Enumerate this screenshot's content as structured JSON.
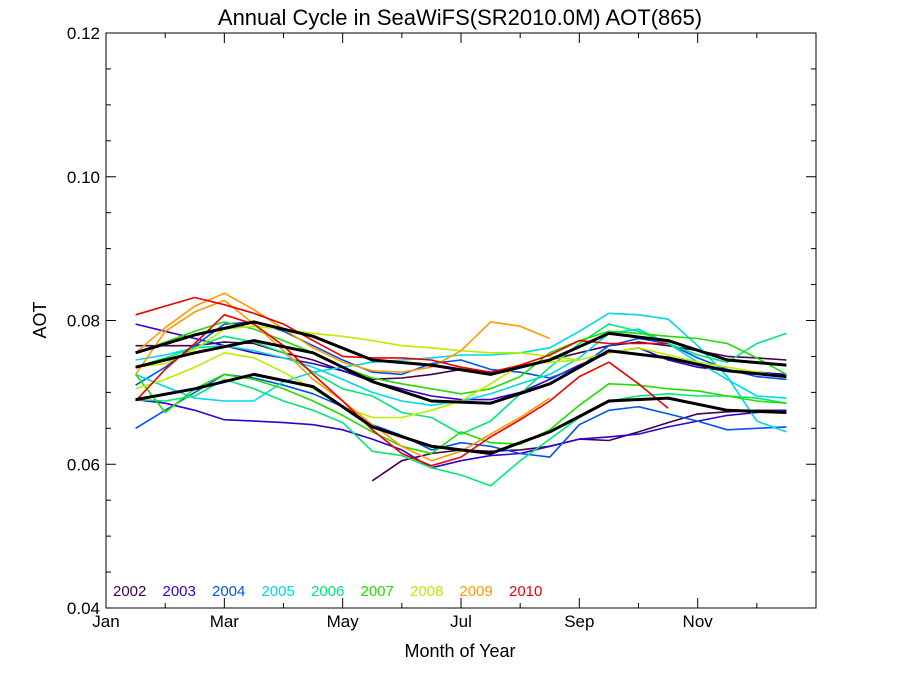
{
  "chart_data": {
    "type": "line",
    "title": "Annual Cycle in SeaWiFS(SR2010.0M) AOT(865)",
    "xlabel": "Month of Year",
    "ylabel": "AOT",
    "xlim": [
      1,
      13
    ],
    "ylim": [
      0.04,
      0.12
    ],
    "x_ticks": [
      {
        "value": 1,
        "label": "Jan"
      },
      {
        "value": 3,
        "label": "Mar"
      },
      {
        "value": 5,
        "label": "May"
      },
      {
        "value": 7,
        "label": "Jul"
      },
      {
        "value": 9,
        "label": "Sep"
      },
      {
        "value": 11,
        "label": "Nov"
      }
    ],
    "y_ticks": [
      {
        "value": 0.04,
        "label": "0.04"
      },
      {
        "value": 0.06,
        "label": "0.06"
      },
      {
        "value": 0.08,
        "label": "0.08"
      },
      {
        "value": 0.1,
        "label": "0.10"
      },
      {
        "value": 0.12,
        "label": "0.12"
      }
    ],
    "legend_position": "bottom-left",
    "legend": [
      {
        "label": "2002",
        "color": "#44004f"
      },
      {
        "label": "2003",
        "color": "#3300cc"
      },
      {
        "label": "2004",
        "color": "#0055ee"
      },
      {
        "label": "2005",
        "color": "#00d8e8"
      },
      {
        "label": "2006",
        "color": "#00e878"
      },
      {
        "label": "2007",
        "color": "#22dd00"
      },
      {
        "label": "2008",
        "color": "#b8ee00"
      },
      {
        "label": "2009",
        "color": "#ff9900"
      },
      {
        "label": "2010",
        "color": "#ee0000"
      }
    ],
    "series": [
      {
        "color": "#44004f",
        "x": [
          5.5,
          6,
          6.5,
          7,
          7.5,
          8,
          8.5,
          9,
          9.5,
          10,
          10.5,
          11,
          11.5,
          12,
          12.5
        ],
        "y": [
          0.0577,
          0.0605,
          0.0615,
          0.062,
          0.0618,
          0.062,
          0.0625,
          0.0635,
          0.0633,
          0.0645,
          0.0658,
          0.067,
          0.0673,
          0.0675,
          0.0675
        ]
      },
      {
        "color": "#44004f",
        "x": [
          1.5,
          2,
          2.5,
          3,
          3.5,
          4,
          4.5,
          5,
          5.5,
          6,
          6.5,
          7,
          7.5,
          8,
          8.5,
          9,
          9.5,
          10,
          10.5,
          11,
          11.5,
          12,
          12.5
        ],
        "y": [
          0.0765,
          0.0765,
          0.0765,
          0.077,
          0.0768,
          0.0755,
          0.0745,
          0.073,
          0.0718,
          0.072,
          0.0725,
          0.0732,
          0.0728,
          0.0735,
          0.0745,
          0.0755,
          0.0765,
          0.077,
          0.0765,
          0.0758,
          0.075,
          0.0748,
          0.0745
        ]
      },
      {
        "color": "#3300cc",
        "x": [
          1.5,
          2,
          2.5,
          3,
          3.5,
          4,
          4.5,
          5,
          5.5,
          6,
          6.5,
          7,
          7.5,
          8,
          8.5,
          9,
          9.5,
          10,
          10.5,
          11,
          11.5,
          12,
          12.5
        ],
        "y": [
          0.069,
          0.0685,
          0.0675,
          0.0662,
          0.066,
          0.0658,
          0.0655,
          0.0648,
          0.0635,
          0.062,
          0.0595,
          0.0605,
          0.0612,
          0.0615,
          0.0625,
          0.0635,
          0.0638,
          0.0642,
          0.0652,
          0.066,
          0.0668,
          0.0672,
          0.0675
        ]
      },
      {
        "color": "#3300cc",
        "x": [
          1.5,
          2,
          2.5,
          3,
          3.5,
          4,
          4.5,
          5,
          5.5,
          6,
          6.5,
          7,
          7.5,
          8,
          8.5,
          9,
          9.5,
          10,
          10.5,
          11,
          11.5,
          12,
          12.5
        ],
        "y": [
          0.0795,
          0.0785,
          0.0775,
          0.0765,
          0.0755,
          0.0748,
          0.074,
          0.073,
          0.0715,
          0.0705,
          0.0695,
          0.069,
          0.069,
          0.07,
          0.0718,
          0.0738,
          0.0755,
          0.0762,
          0.0745,
          0.0735,
          0.073,
          0.0728,
          0.0725
        ]
      },
      {
        "color": "#0055ee",
        "x": [
          1.5,
          2,
          2.5,
          3,
          3.5,
          4,
          4.5,
          5,
          5.5,
          6,
          6.5,
          7,
          7.5,
          8,
          8.5,
          9,
          9.5,
          10,
          10.5,
          11,
          11.5,
          12,
          12.5
        ],
        "y": [
          0.065,
          0.0675,
          0.07,
          0.0725,
          0.072,
          0.071,
          0.0698,
          0.068,
          0.0655,
          0.064,
          0.062,
          0.063,
          0.0625,
          0.0615,
          0.061,
          0.0655,
          0.0675,
          0.068,
          0.067,
          0.066,
          0.0648,
          0.065,
          0.0652
        ]
      },
      {
        "color": "#0055ee",
        "x": [
          1.5,
          2,
          2.5,
          3,
          3.5,
          4,
          4.5,
          5,
          5.5,
          6,
          6.5,
          7,
          7.5,
          8,
          8.5,
          9,
          9.5,
          10,
          10.5,
          11,
          11.5,
          12,
          12.5
        ],
        "y": [
          0.071,
          0.0735,
          0.0765,
          0.0795,
          0.0798,
          0.0785,
          0.0765,
          0.0745,
          0.0728,
          0.0725,
          0.074,
          0.0745,
          0.0732,
          0.0728,
          0.072,
          0.0735,
          0.0765,
          0.0775,
          0.0768,
          0.0748,
          0.0732,
          0.0722,
          0.0718
        ]
      },
      {
        "color": "#00d8e8",
        "x": [
          1.5,
          2,
          2.5,
          3,
          3.5,
          4,
          4.5,
          5,
          5.5,
          6,
          6.5,
          7,
          7.5,
          8,
          8.5,
          9,
          9.5,
          10,
          10.5,
          11,
          11.5,
          12,
          12.5
        ],
        "y": [
          0.0725,
          0.0708,
          0.0692,
          0.0688,
          0.0688,
          0.0715,
          0.0728,
          0.0735,
          0.0742,
          0.0745,
          0.0748,
          0.0752,
          0.0752,
          0.0755,
          0.0762,
          0.0785,
          0.081,
          0.0808,
          0.0802,
          0.0765,
          0.0722,
          0.066,
          0.0645
        ]
      },
      {
        "color": "#00d8e8",
        "x": [
          1.5,
          2,
          2.5,
          3,
          3.5,
          4,
          4.5,
          5,
          5.5,
          6,
          6.5,
          7,
          7.5,
          8,
          8.5,
          9,
          9.5,
          10,
          10.5,
          11,
          11.5,
          12,
          12.5
        ],
        "y": [
          0.0745,
          0.0752,
          0.0762,
          0.0765,
          0.0758,
          0.0748,
          0.0735,
          0.0718,
          0.07,
          0.0688,
          0.0682,
          0.0688,
          0.0698,
          0.0712,
          0.0725,
          0.0748,
          0.0782,
          0.0788,
          0.0768,
          0.0742,
          0.0718,
          0.0695,
          0.0692
        ]
      },
      {
        "color": "#00e878",
        "x": [
          1.5,
          2,
          2.5,
          3,
          3.5,
          4,
          4.5,
          5,
          5.5,
          6,
          6.5,
          7,
          7.5,
          8,
          8.5,
          9,
          9.5,
          10,
          10.5,
          11,
          11.5,
          12,
          12.5
        ],
        "y": [
          0.069,
          0.0688,
          0.0695,
          0.0718,
          0.0705,
          0.0688,
          0.0675,
          0.0658,
          0.0618,
          0.0612,
          0.0595,
          0.0585,
          0.057,
          0.0605,
          0.0635,
          0.0665,
          0.0688,
          0.0695,
          0.0698,
          0.0695,
          0.0695,
          0.0692,
          0.0685
        ]
      },
      {
        "color": "#00e878",
        "x": [
          1.5,
          2,
          2.5,
          3,
          3.5,
          4,
          4.5,
          5,
          5.5,
          6,
          6.5,
          7,
          7.5,
          8,
          8.5,
          9,
          9.5,
          10,
          10.5,
          11,
          11.5,
          12,
          12.5
        ],
        "y": [
          0.0735,
          0.0748,
          0.0762,
          0.0778,
          0.077,
          0.0755,
          0.0728,
          0.0705,
          0.0695,
          0.0672,
          0.0665,
          0.0642,
          0.066,
          0.0698,
          0.0735,
          0.0768,
          0.0795,
          0.0785,
          0.0768,
          0.0752,
          0.0742,
          0.0768,
          0.0782
        ]
      },
      {
        "color": "#22dd00",
        "x": [
          1.5,
          2,
          2.5,
          3,
          3.5,
          4,
          4.5,
          5,
          5.5,
          6,
          6.5,
          7,
          7.5,
          8,
          8.5,
          9,
          9.5,
          10,
          10.5,
          11,
          11.5,
          12,
          12.5
        ],
        "y": [
          0.0725,
          0.0672,
          0.0705,
          0.0725,
          0.0718,
          0.0705,
          0.0688,
          0.0668,
          0.0645,
          0.0625,
          0.0615,
          0.0645,
          0.063,
          0.0628,
          0.0648,
          0.0682,
          0.0712,
          0.071,
          0.0705,
          0.0702,
          0.0695,
          0.0688,
          0.0685
        ]
      },
      {
        "color": "#22dd00",
        "x": [
          1.5,
          2,
          2.5,
          3,
          3.5,
          4,
          4.5,
          5,
          5.5,
          6,
          6.5,
          7,
          7.5,
          8,
          8.5,
          9,
          9.5,
          10,
          10.5,
          11,
          11.5,
          12,
          12.5
        ],
        "y": [
          0.0755,
          0.077,
          0.0785,
          0.0798,
          0.0788,
          0.0772,
          0.0755,
          0.0735,
          0.072,
          0.0712,
          0.0705,
          0.0698,
          0.0705,
          0.0722,
          0.0755,
          0.0772,
          0.0785,
          0.0782,
          0.0778,
          0.0775,
          0.0768,
          0.0748,
          0.0725
        ]
      },
      {
        "color": "#b8ee00",
        "x": [
          1.5,
          2,
          2.5,
          3,
          3.5,
          4,
          4.5,
          5,
          5.5,
          6,
          6.5,
          7,
          7.5,
          8,
          8.5,
          9
        ],
        "y": [
          0.0735,
          0.074,
          0.076,
          0.0788,
          0.0792,
          0.0788,
          0.0782,
          0.0778,
          0.0772,
          0.0765,
          0.0762,
          0.0758,
          0.0755,
          0.0755,
          0.075,
          0.0745
        ]
      },
      {
        "color": "#b8ee00",
        "x": [
          1.5,
          2,
          2.5,
          3,
          3.5,
          4,
          4.5,
          5,
          5.5,
          6,
          6.5,
          7,
          7.5,
          8,
          8.5,
          9,
          9.5,
          10,
          10.5,
          11,
          11.5,
          12,
          12.5
        ],
        "y": [
          0.0705,
          0.0718,
          0.0735,
          0.0755,
          0.0748,
          0.0728,
          0.0705,
          0.068,
          0.0665,
          0.0665,
          0.0675,
          0.0688,
          0.0712,
          0.0738,
          0.0742,
          0.0745,
          0.0755,
          0.0762,
          0.0752,
          0.0742,
          0.0735,
          0.0728,
          0.0722
        ]
      },
      {
        "color": "#ff9900",
        "x": [
          1.5,
          2,
          2.5,
          3,
          3.5,
          4,
          4.5,
          5,
          5.5,
          6,
          6.5,
          7,
          7.5,
          8,
          8.5
        ],
        "y": [
          0.0755,
          0.079,
          0.082,
          0.0838,
          0.0815,
          0.0788,
          0.0762,
          0.0742,
          0.073,
          0.0728,
          0.0735,
          0.0758,
          0.0798,
          0.0792,
          0.0775
        ]
      },
      {
        "color": "#ff9900",
        "x": [
          1.5,
          2,
          2.5,
          3,
          3.5,
          4,
          4.5,
          5,
          5.5,
          6,
          6.5,
          7,
          7.5,
          8,
          8.5
        ],
        "y": [
          0.0725,
          0.0785,
          0.0812,
          0.0828,
          0.0795,
          0.0758,
          0.0718,
          0.0688,
          0.0655,
          0.0625,
          0.0605,
          0.0618,
          0.0642,
          0.0665,
          0.0692
        ]
      },
      {
        "color": "#ee0000",
        "x": [
          1.5,
          2,
          2.5,
          3,
          3.5,
          4,
          4.5,
          5,
          5.5,
          6,
          6.5,
          7,
          7.5,
          8,
          8.5,
          9,
          9.5,
          10,
          10.5
        ],
        "y": [
          0.0808,
          0.082,
          0.0832,
          0.0822,
          0.081,
          0.0795,
          0.0772,
          0.075,
          0.0748,
          0.0748,
          0.0745,
          0.0735,
          0.0728,
          0.0738,
          0.0752,
          0.0772,
          0.0768,
          0.0768,
          0.0768
        ]
      },
      {
        "color": "#ee0000",
        "x": [
          1.5,
          2,
          2.5,
          3,
          3.5,
          4,
          4.5,
          5,
          5.5,
          6,
          6.5,
          7,
          7.5,
          8,
          8.5,
          9,
          9.5,
          10,
          10.5
        ],
        "y": [
          0.0688,
          0.0732,
          0.0768,
          0.0808,
          0.0795,
          0.0765,
          0.0725,
          0.0688,
          0.0648,
          0.0615,
          0.0598,
          0.061,
          0.0638,
          0.0662,
          0.0688,
          0.0722,
          0.0742,
          0.0712,
          0.0678
        ]
      },
      {
        "color": "#000000",
        "x": [
          1.5,
          2.5,
          3.5,
          4.5,
          5.5,
          6.5,
          7.5,
          8.5,
          9.5,
          10.5,
          11.5,
          12.5
        ],
        "y": [
          0.0755,
          0.078,
          0.0798,
          0.0778,
          0.0745,
          0.0738,
          0.0725,
          0.0745,
          0.0782,
          0.0772,
          0.0745,
          0.0738
        ]
      },
      {
        "color": "#000000",
        "x": [
          1.5,
          2.5,
          3.5,
          4.5,
          5.5,
          6.5,
          7.5,
          8.5,
          9.5,
          10.5,
          11.5,
          12.5
        ],
        "y": [
          0.0735,
          0.0755,
          0.0772,
          0.0755,
          0.0715,
          0.0688,
          0.0685,
          0.0712,
          0.0758,
          0.0748,
          0.073,
          0.0722
        ]
      },
      {
        "color": "#000000",
        "x": [
          1.5,
          2.5,
          3.5,
          4.5,
          5.5,
          6.5,
          7.5,
          8.5,
          9.5,
          10.5,
          11.5,
          12.5
        ],
        "y": [
          0.069,
          0.0705,
          0.0725,
          0.0708,
          0.0652,
          0.0625,
          0.0615,
          0.0645,
          0.0688,
          0.0692,
          0.0675,
          0.0672
        ]
      }
    ]
  }
}
